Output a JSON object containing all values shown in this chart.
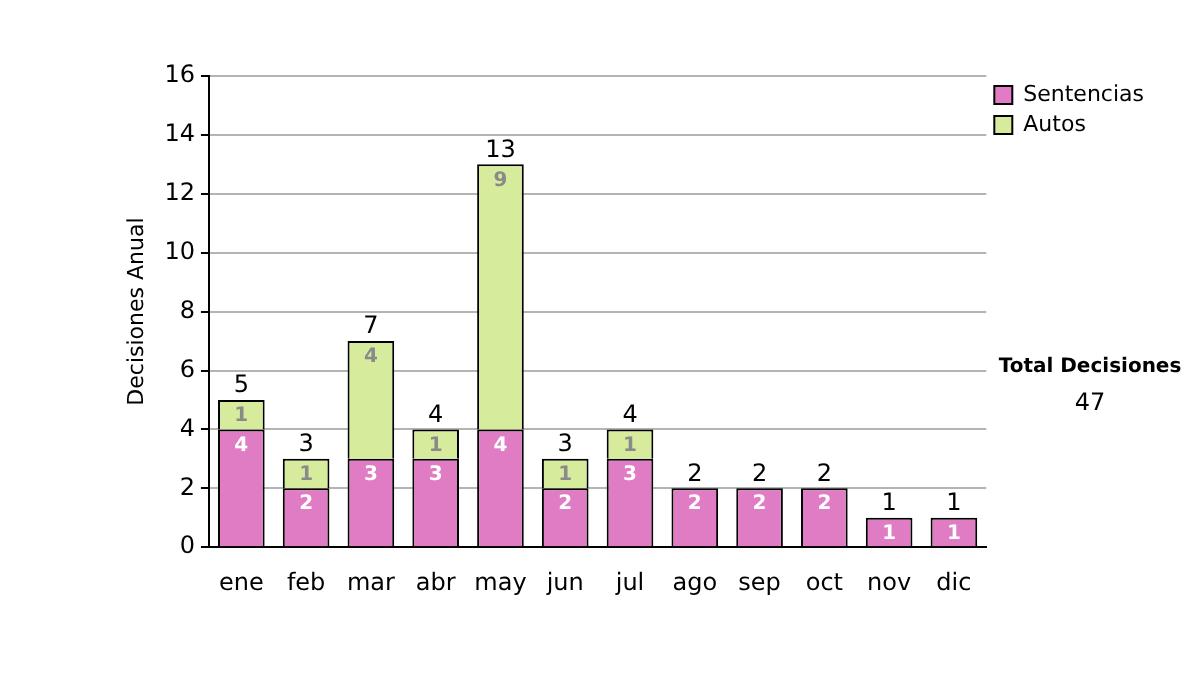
{
  "chart_data": {
    "type": "bar",
    "stacked": true,
    "ylabel": "Decisiones Anual",
    "categories": [
      "ene",
      "feb",
      "mar",
      "abr",
      "may",
      "jun",
      "jul",
      "ago",
      "sep",
      "oct",
      "nov",
      "dic"
    ],
    "series": [
      {
        "name": "Sentencias",
        "color": "#e07cc4",
        "values": [
          4,
          2,
          3,
          3,
          4,
          2,
          3,
          2,
          2,
          2,
          1,
          1
        ],
        "value_labels": [
          "4",
          "2",
          "3",
          "3",
          "4",
          "2",
          "3",
          "2",
          "2",
          "2",
          "1",
          "1"
        ]
      },
      {
        "name": "Autos",
        "color": "#d6ec9c",
        "values": [
          1,
          1,
          4,
          1,
          9,
          1,
          1,
          0,
          0,
          0,
          0,
          0
        ],
        "value_labels": [
          "1",
          "1",
          "4",
          "1",
          "9",
          "1",
          "1",
          null,
          null,
          null,
          null,
          null
        ]
      }
    ],
    "totals": [
      "5",
      "3",
      "7",
      "4",
      "13",
      "3",
      "4",
      "2",
      "2",
      "2",
      "1",
      "1"
    ],
    "ylim": [
      0,
      16
    ],
    "yticks": [
      0,
      2,
      4,
      6,
      8,
      10,
      12,
      14,
      16
    ],
    "grid": "y",
    "legend": "right",
    "annotations": [
      "Total Decisiones",
      "47"
    ]
  }
}
